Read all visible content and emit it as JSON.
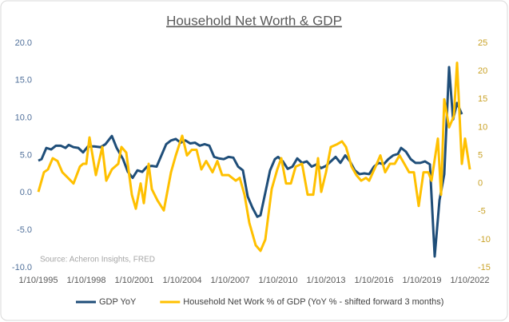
{
  "chart_data": {
    "type": "line",
    "title": "Household Net Worth & GDP",
    "source": "Source: Acheron Insights, FRED",
    "legend": "bottom",
    "grid": false,
    "xlim": [
      1995,
      2022
    ],
    "xticks": [
      {
        "value": 1995,
        "label": "1/10/1995"
      },
      {
        "value": 1998,
        "label": "1/10/1998"
      },
      {
        "value": 2001,
        "label": "1/10/2001"
      },
      {
        "value": 2004,
        "label": "1/10/2004"
      },
      {
        "value": 2007,
        "label": "1/10/2007"
      },
      {
        "value": 2010,
        "label": "1/10/2010"
      },
      {
        "value": 2013,
        "label": "1/10/2013"
      },
      {
        "value": 2016,
        "label": "1/10/2016"
      },
      {
        "value": 2019,
        "label": "1/10/2019"
      },
      {
        "value": 2022,
        "label": "1/10/2022"
      }
    ],
    "ylim": [
      -10,
      20
    ],
    "yticks": [
      {
        "value": -10,
        "label": "-10.0"
      },
      {
        "value": -5,
        "label": "-5.0"
      },
      {
        "value": 0,
        "label": "0.0"
      },
      {
        "value": 5,
        "label": "5.0"
      },
      {
        "value": 10,
        "label": "10.0"
      },
      {
        "value": 15,
        "label": "15.0"
      },
      {
        "value": 20,
        "label": "20.0"
      }
    ],
    "y2lim": [
      -15,
      25
    ],
    "y2ticks": [
      -15,
      -10,
      -5,
      0,
      5,
      10,
      15,
      20,
      25
    ],
    "series": [
      {
        "name": "GDP YoY",
        "color": "#1f4e79",
        "axis": "y",
        "x": [
          1995,
          1995.2,
          1995.5,
          1995.8,
          1996.1,
          1996.4,
          1996.7,
          1996.9,
          1997.2,
          1997.5,
          1997.8,
          1998.1,
          1998.5,
          1998.9,
          1999.2,
          1999.6,
          1999.9,
          2000.3,
          2000.6,
          2000.9,
          2001.2,
          2001.5,
          2001.8,
          2002.1,
          2002.4,
          2002.6,
          2003,
          2003.3,
          2003.6,
          2003.9,
          2004.2,
          2004.5,
          2004.8,
          2005.1,
          2005.4,
          2005.7,
          2006,
          2006.3,
          2006.6,
          2006.9,
          2007.2,
          2007.5,
          2007.8,
          2008.1,
          2008.4,
          2008.7,
          2008.9,
          2009.2,
          2009.5,
          2009.8,
          2010,
          2010.3,
          2010.6,
          2010.9,
          2011.2,
          2011.5,
          2011.8,
          2012.1,
          2012.4,
          2012.7,
          2013,
          2013.3,
          2013.6,
          2013.9,
          2014.2,
          2014.5,
          2014.8,
          2015.1,
          2015.4,
          2015.7,
          2016,
          2016.3,
          2016.6,
          2016.9,
          2017.2,
          2017.5,
          2017.7,
          2018,
          2018.3,
          2018.6,
          2018.9,
          2019.2,
          2019.5,
          2019.8,
          2020.1,
          2020.4,
          2020.7,
          2020.95,
          2021.2,
          2021.5
        ],
        "values": [
          4.3,
          4.5,
          6.0,
          5.8,
          6.3,
          6.3,
          6.0,
          6.4,
          6.1,
          6.0,
          5.4,
          6.2,
          6.2,
          6.1,
          6.5,
          7.6,
          6.0,
          4.5,
          2.8,
          2.0,
          3.0,
          2.8,
          3.5,
          3.6,
          3.5,
          4.5,
          6.5,
          7.0,
          7.2,
          6.7,
          7.0,
          6.6,
          6.7,
          6.3,
          6.5,
          6.3,
          4.8,
          4.6,
          4.5,
          4.8,
          4.7,
          3.5,
          3.0,
          -0.5,
          -2.0,
          -3.2,
          -3.0,
          0.0,
          3.0,
          4.5,
          4.8,
          4.2,
          3.2,
          3.5,
          4.6,
          4.0,
          4.2,
          3.5,
          3.8,
          3.3,
          3.6,
          4.2,
          4.8,
          4.0,
          5.0,
          4.2,
          3.0,
          2.5,
          2.6,
          2.5,
          3.5,
          4.0,
          3.8,
          4.5,
          5.0,
          5.2,
          6.0,
          5.5,
          4.5,
          4.0,
          4.0,
          4.2,
          3.8,
          -8.5,
          -1.0,
          2.5,
          16.8,
          9.8,
          12.0,
          10.5
        ]
      },
      {
        "name": "Household Net Work % of GDP (YoY % - shifted forward 3 months)",
        "color": "#ffc000",
        "axis": "y2",
        "x": [
          1995,
          1995.35,
          1995.6,
          1995.9,
          1996.2,
          1996.5,
          1996.85,
          1997.2,
          1997.6,
          1997.8,
          1998,
          1998.2,
          1998.6,
          1999,
          1999.25,
          1999.6,
          2000,
          2000.2,
          2000.5,
          2000.85,
          2001.1,
          2001.4,
          2001.6,
          2001.9,
          2002.1,
          2002.45,
          2002.85,
          2003.3,
          2003.6,
          2004,
          2004.3,
          2004.6,
          2004.9,
          2005.2,
          2005.5,
          2005.9,
          2006.2,
          2006.5,
          2006.9,
          2007.35,
          2007.6,
          2007.9,
          2008.2,
          2008.6,
          2008.9,
          2009.2,
          2009.6,
          2009.95,
          2010.2,
          2010.5,
          2010.8,
          2011.1,
          2011.5,
          2011.85,
          2012.2,
          2012.5,
          2012.7,
          2013,
          2013.3,
          2013.7,
          2014,
          2014.25,
          2014.6,
          2014.9,
          2015.2,
          2015.5,
          2015.7,
          2016.1,
          2016.4,
          2016.7,
          2017,
          2017.3,
          2017.6,
          2017.9,
          2018.2,
          2018.5,
          2018.8,
          2019.1,
          2019.4,
          2019.6,
          2020,
          2020.2,
          2020.4,
          2020.7,
          2021,
          2021.2,
          2021.5,
          2021.7,
          2022
        ],
        "values": [
          -1.5,
          2,
          2.5,
          4.5,
          4,
          2,
          1,
          0,
          3,
          3.5,
          3.5,
          8.2,
          1.5,
          6.5,
          0.5,
          2.5,
          3.5,
          6.5,
          5.5,
          -2,
          -4.5,
          0,
          -3.5,
          3.5,
          -1,
          -3,
          -4.8,
          2,
          5,
          8.5,
          5,
          6,
          6,
          2.5,
          4,
          2,
          4,
          1.5,
          1.5,
          0.5,
          1,
          -2,
          -7,
          -11,
          -12,
          -10,
          -1,
          2.5,
          4.5,
          0,
          0,
          3,
          3.5,
          -2,
          -2,
          4.5,
          -1.5,
          2,
          6.5,
          7,
          7.5,
          6.5,
          3,
          1.5,
          0.5,
          1,
          0.5,
          3,
          5,
          2,
          3.5,
          3.5,
          5,
          3.5,
          2,
          2,
          -4,
          2,
          2,
          0.5,
          8,
          -2,
          15,
          10,
          12,
          21.5,
          3.5,
          8,
          2.5
        ]
      }
    ]
  }
}
